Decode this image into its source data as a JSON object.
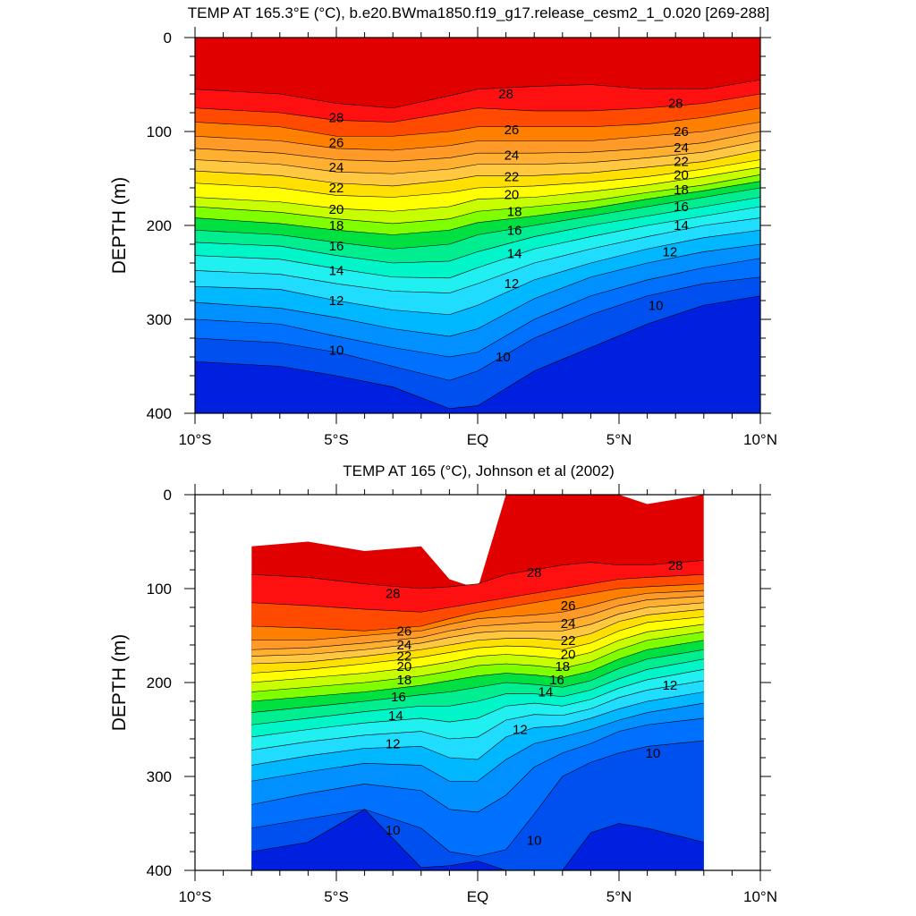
{
  "chart_data": [
    {
      "type": "contour",
      "title": "TEMP AT 165.3°E (°C), b.e20.BWma1850.f19_g17.release_cesm2_1_0.020 [269-288]",
      "ylabel": "DEPTH (m)",
      "xlim": [
        -10,
        10
      ],
      "ylim": [
        0,
        400
      ],
      "y_inverted": true,
      "x_ticks": [
        -10,
        -5,
        0,
        5,
        10
      ],
      "x_tick_labels": [
        "10°S",
        "5°S",
        "EQ",
        "5°N",
        "10°N"
      ],
      "y_ticks": [
        0,
        100,
        200,
        300,
        400
      ],
      "y_tick_labels": [
        "0",
        "100",
        "200",
        "300",
        "400"
      ],
      "data_xlim": [
        -10,
        10
      ],
      "isotherm_depths": {
        "x": [
          -10,
          -7,
          -5,
          -3,
          -1,
          0,
          2,
          4,
          6,
          8,
          10
        ],
        "levels": [
          29,
          28,
          27,
          26,
          25,
          24,
          23,
          22,
          21,
          20,
          19,
          18,
          17,
          16,
          15,
          14,
          13,
          12,
          11,
          10,
          9
        ],
        "depth": [
          [
            0,
            0,
            0,
            0,
            0,
            0,
            0,
            0,
            0,
            0,
            0
          ],
          [
            55,
            60,
            70,
            75,
            62,
            55,
            52,
            50,
            55,
            55,
            45
          ],
          [
            75,
            80,
            88,
            90,
            80,
            75,
            78,
            78,
            75,
            70,
            60
          ],
          [
            90,
            95,
            105,
            105,
            100,
            95,
            95,
            95,
            92,
            85,
            75
          ],
          [
            105,
            110,
            118,
            120,
            115,
            110,
            110,
            110,
            105,
            100,
            90
          ],
          [
            118,
            123,
            130,
            132,
            128,
            123,
            123,
            122,
            118,
            112,
            100
          ],
          [
            130,
            135,
            143,
            145,
            140,
            135,
            135,
            133,
            128,
            122,
            110
          ],
          [
            142,
            147,
            155,
            158,
            152,
            147,
            147,
            144,
            138,
            132,
            120
          ],
          [
            155,
            160,
            168,
            170,
            165,
            160,
            158,
            154,
            148,
            140,
            130
          ],
          [
            170,
            175,
            182,
            185,
            180,
            172,
            170,
            164,
            157,
            148,
            138
          ],
          [
            180,
            186,
            193,
            198,
            193,
            185,
            180,
            174,
            165,
            157,
            146
          ],
          [
            192,
            198,
            205,
            210,
            205,
            197,
            190,
            182,
            172,
            163,
            153
          ],
          [
            205,
            210,
            218,
            225,
            220,
            210,
            200,
            190,
            180,
            170,
            160
          ],
          [
            218,
            222,
            232,
            240,
            238,
            228,
            212,
            200,
            190,
            180,
            170
          ],
          [
            232,
            236,
            246,
            255,
            256,
            245,
            225,
            212,
            200,
            190,
            180
          ],
          [
            248,
            252,
            262,
            270,
            272,
            262,
            240,
            225,
            212,
            200,
            192
          ],
          [
            265,
            268,
            280,
            290,
            295,
            285,
            258,
            240,
            225,
            213,
            205
          ],
          [
            282,
            288,
            298,
            310,
            318,
            310,
            278,
            255,
            240,
            228,
            220
          ],
          [
            300,
            305,
            318,
            330,
            340,
            335,
            300,
            275,
            258,
            245,
            235
          ],
          [
            320,
            325,
            335,
            350,
            365,
            355,
            320,
            295,
            275,
            262,
            255
          ],
          [
            345,
            350,
            360,
            372,
            395,
            392,
            355,
            330,
            305,
            285,
            275
          ]
        ]
      },
      "contour_labels": [
        {
          "text": "28",
          "x": -5,
          "y": 85
        },
        {
          "text": "26",
          "x": -5,
          "y": 112
        },
        {
          "text": "24",
          "x": -5,
          "y": 138
        },
        {
          "text": "22",
          "x": -5,
          "y": 160
        },
        {
          "text": "20",
          "x": -5,
          "y": 183
        },
        {
          "text": "18",
          "x": -5,
          "y": 200
        },
        {
          "text": "16",
          "x": -5,
          "y": 222
        },
        {
          "text": "14",
          "x": -5,
          "y": 248
        },
        {
          "text": "12",
          "x": -5,
          "y": 280
        },
        {
          "text": "10",
          "x": -5,
          "y": 333
        },
        {
          "text": "28",
          "x": 1,
          "y": 60
        },
        {
          "text": "26",
          "x": 1.2,
          "y": 98
        },
        {
          "text": "24",
          "x": 1.2,
          "y": 125
        },
        {
          "text": "22",
          "x": 1.2,
          "y": 148
        },
        {
          "text": "20",
          "x": 1.2,
          "y": 167
        },
        {
          "text": "18",
          "x": 1.3,
          "y": 185
        },
        {
          "text": "16",
          "x": 1.3,
          "y": 205
        },
        {
          "text": "14",
          "x": 1.3,
          "y": 230
        },
        {
          "text": "12",
          "x": 1.2,
          "y": 262
        },
        {
          "text": "10",
          "x": 0.9,
          "y": 340
        },
        {
          "text": "28",
          "x": 7,
          "y": 70
        },
        {
          "text": "26",
          "x": 7.2,
          "y": 100
        },
        {
          "text": "24",
          "x": 7.2,
          "y": 117
        },
        {
          "text": "22",
          "x": 7.2,
          "y": 132
        },
        {
          "text": "20",
          "x": 7.2,
          "y": 146
        },
        {
          "text": "18",
          "x": 7.2,
          "y": 162
        },
        {
          "text": "16",
          "x": 7.2,
          "y": 180
        },
        {
          "text": "14",
          "x": 7.2,
          "y": 200
        },
        {
          "text": "12",
          "x": 6.8,
          "y": 228
        },
        {
          "text": "10",
          "x": 6.3,
          "y": 285
        }
      ]
    },
    {
      "type": "contour",
      "title": "TEMP AT 165 (°C), Johnson et al (2002)",
      "ylabel": "DEPTH (m)",
      "xlim": [
        -10,
        10
      ],
      "ylim": [
        0,
        400
      ],
      "y_inverted": true,
      "x_ticks": [
        -10,
        -5,
        0,
        5,
        10
      ],
      "x_tick_labels": [
        "10°S",
        "5°S",
        "EQ",
        "5°N",
        "10°N"
      ],
      "y_ticks": [
        0,
        100,
        200,
        300,
        400
      ],
      "y_tick_labels": [
        "0",
        "100",
        "200",
        "300",
        "400"
      ],
      "data_xlim": [
        -8,
        8
      ],
      "isotherm_depths": {
        "x": [
          -8,
          -6,
          -4,
          -2,
          -1,
          0,
          1,
          2,
          3,
          4,
          5,
          6,
          8
        ],
        "levels": [
          29,
          28,
          27,
          26,
          25,
          24,
          23,
          22,
          21,
          20,
          19,
          18,
          17,
          16,
          15,
          14,
          13,
          12,
          11,
          10,
          9
        ],
        "depth": [
          [
            55,
            50,
            60,
            55,
            90,
            100,
            0,
            0,
            0,
            0,
            0,
            10,
            0
          ],
          [
            85,
            88,
            95,
            100,
            98,
            95,
            85,
            80,
            75,
            72,
            75,
            75,
            70
          ],
          [
            115,
            118,
            122,
            125,
            120,
            115,
            110,
            105,
            100,
            95,
            90,
            88,
            85
          ],
          [
            140,
            142,
            145,
            140,
            132,
            125,
            120,
            115,
            110,
            105,
            100,
            98,
            95
          ],
          [
            155,
            155,
            150,
            145,
            138,
            132,
            130,
            128,
            125,
            118,
            110,
            105,
            102
          ],
          [
            165,
            163,
            158,
            152,
            145,
            140,
            138,
            136,
            135,
            128,
            118,
            112,
            108
          ],
          [
            172,
            170,
            165,
            158,
            152,
            147,
            145,
            145,
            145,
            138,
            127,
            120,
            115
          ],
          [
            180,
            178,
            172,
            165,
            160,
            155,
            153,
            153,
            155,
            148,
            135,
            128,
            122
          ],
          [
            190,
            186,
            180,
            173,
            168,
            163,
            161,
            162,
            165,
            158,
            145,
            136,
            130
          ],
          [
            200,
            195,
            190,
            183,
            178,
            172,
            170,
            172,
            175,
            168,
            155,
            146,
            138
          ],
          [
            210,
            205,
            200,
            193,
            188,
            182,
            180,
            182,
            185,
            178,
            165,
            155,
            146
          ],
          [
            220,
            215,
            210,
            203,
            198,
            193,
            190,
            192,
            195,
            188,
            175,
            165,
            155
          ],
          [
            232,
            226,
            220,
            213,
            210,
            205,
            200,
            202,
            205,
            198,
            185,
            175,
            165
          ],
          [
            245,
            238,
            231,
            225,
            225,
            220,
            212,
            212,
            215,
            208,
            196,
            186,
            175
          ],
          [
            258,
            250,
            243,
            238,
            242,
            238,
            225,
            222,
            225,
            218,
            206,
            197,
            186
          ],
          [
            272,
            263,
            256,
            252,
            260,
            258,
            240,
            234,
            235,
            228,
            216,
            208,
            198
          ],
          [
            288,
            278,
            270,
            268,
            280,
            282,
            258,
            248,
            246,
            238,
            228,
            220,
            210
          ],
          [
            305,
            295,
            286,
            288,
            305,
            305,
            282,
            265,
            258,
            250,
            240,
            232,
            222
          ],
          [
            330,
            318,
            308,
            315,
            335,
            338,
            320,
            290,
            275,
            265,
            252,
            245,
            238
          ],
          [
            355,
            345,
            335,
            355,
            380,
            385,
            378,
            340,
            300,
            285,
            275,
            268,
            262
          ],
          [
            380,
            370,
            335,
            397,
            395,
            390,
            400,
            400,
            400,
            360,
            350,
            355,
            370
          ]
        ]
      },
      "contour_labels": [
        {
          "text": "28",
          "x": -3,
          "y": 105
        },
        {
          "text": "26",
          "x": -2.6,
          "y": 145
        },
        {
          "text": "24",
          "x": -2.6,
          "y": 160
        },
        {
          "text": "22",
          "x": -2.6,
          "y": 172
        },
        {
          "text": "20",
          "x": -2.6,
          "y": 183
        },
        {
          "text": "18",
          "x": -2.6,
          "y": 197
        },
        {
          "text": "16",
          "x": -2.8,
          "y": 215
        },
        {
          "text": "14",
          "x": -2.9,
          "y": 235
        },
        {
          "text": "12",
          "x": -3,
          "y": 265
        },
        {
          "text": "10",
          "x": -3,
          "y": 357
        },
        {
          "text": "28",
          "x": 2,
          "y": 83
        },
        {
          "text": "26",
          "x": 3.2,
          "y": 118
        },
        {
          "text": "24",
          "x": 3.2,
          "y": 137
        },
        {
          "text": "22",
          "x": 3.2,
          "y": 155
        },
        {
          "text": "20",
          "x": 3.2,
          "y": 170
        },
        {
          "text": "18",
          "x": 3,
          "y": 183
        },
        {
          "text": "16",
          "x": 2.8,
          "y": 197
        },
        {
          "text": "14",
          "x": 2.4,
          "y": 210
        },
        {
          "text": "12",
          "x": 1.5,
          "y": 250
        },
        {
          "text": "10",
          "x": 2,
          "y": 368
        },
        {
          "text": "28",
          "x": 7,
          "y": 75
        },
        {
          "text": "12",
          "x": 6.8,
          "y": 203
        },
        {
          "text": "10",
          "x": 6.2,
          "y": 275
        }
      ]
    }
  ],
  "colors": {
    "fill_scale": [
      "#e00000",
      "#ff1010",
      "#ff4a00",
      "#ff7f00",
      "#ff9a28",
      "#ffb030",
      "#ffc840",
      "#ffe000",
      "#ffff00",
      "#c8ff00",
      "#80ff00",
      "#00e040",
      "#00ee90",
      "#00f5c8",
      "#20f0f0",
      "#20dcff",
      "#00b8ff",
      "#0090ff",
      "#0070ff",
      "#0050f0",
      "#0020e0",
      "#5000d0"
    ],
    "frame": "#000000",
    "background": "#ffffff"
  }
}
